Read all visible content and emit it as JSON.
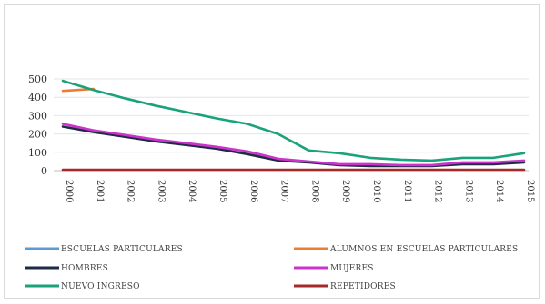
{
  "chart_data": {
    "type": "line",
    "title": "",
    "xlabel": "",
    "ylabel": "",
    "x": [
      "2000",
      "2001",
      "2002",
      "2003",
      "2004",
      "2005",
      "2006",
      "2007",
      "2008",
      "2009",
      "2010",
      "2011",
      "2012",
      "2013",
      "2014",
      "2015"
    ],
    "yticks": [
      "500",
      "400",
      "300",
      "200",
      "100",
      "0"
    ],
    "ylim": [
      0,
      520
    ],
    "grid": "horizontal",
    "legend_position": "bottom",
    "series": [
      {
        "name": "ESCUELAS PARTICULARES",
        "color": "#5B9BD5",
        "values": [
          null,
          null,
          null,
          null,
          null,
          null,
          null,
          null,
          null,
          null,
          null,
          null,
          null,
          null,
          null,
          null
        ]
      },
      {
        "name": "ALUMNOS EN ESCUELAS PARTICULARES",
        "color": "#ED7D31",
        "values": [
          435,
          445,
          null,
          null,
          null,
          null,
          null,
          null,
          null,
          null,
          null,
          null,
          null,
          null,
          null,
          null
        ]
      },
      {
        "name": "HOMBRES",
        "color": "#1F2A44",
        "values": [
          240,
          210,
          185,
          160,
          140,
          120,
          90,
          55,
          45,
          30,
          25,
          25,
          25,
          35,
          35,
          45
        ]
      },
      {
        "name": "MUJERES",
        "color": "#CC33CC",
        "values": [
          255,
          220,
          195,
          170,
          150,
          130,
          105,
          65,
          50,
          35,
          35,
          30,
          30,
          45,
          45,
          55
        ]
      },
      {
        "name": "NUEVO INGRESO",
        "color": "#1AA27A",
        "values": [
          490,
          440,
          395,
          355,
          320,
          285,
          255,
          200,
          110,
          95,
          70,
          60,
          55,
          70,
          70,
          95
        ]
      },
      {
        "name": "REPETIDORES",
        "color": "#A52A2A",
        "values": [
          5,
          5,
          5,
          5,
          5,
          5,
          5,
          5,
          5,
          5,
          5,
          5,
          5,
          5,
          5,
          5
        ]
      }
    ]
  }
}
